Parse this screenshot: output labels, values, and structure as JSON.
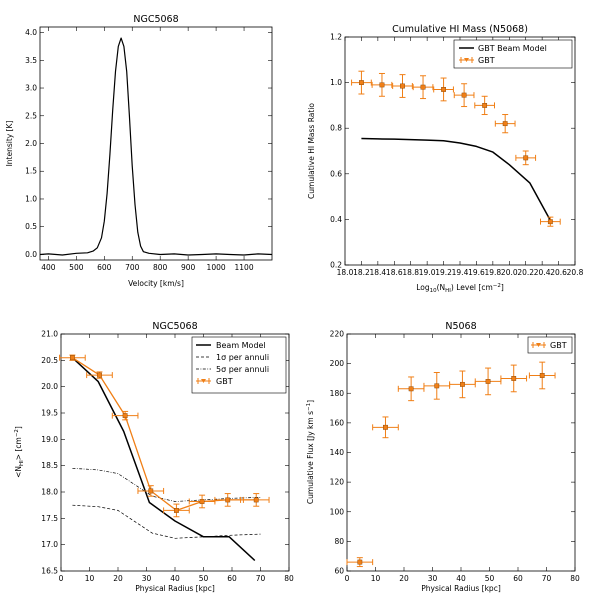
{
  "colors": {
    "gbt": "#f07f16",
    "model": "#000000"
  },
  "chart_data": [
    {
      "type": "line",
      "title": "NGC5068",
      "xlabel": "Velocity [km/s]",
      "ylabel": "Intensity [K]",
      "xlim": [
        370,
        1200
      ],
      "ylim": [
        -0.1,
        4.1
      ],
      "xticks": [
        400,
        500,
        600,
        700,
        800,
        900,
        1000,
        1100
      ],
      "yticks": [
        0.0,
        0.5,
        1.0,
        1.5,
        2.0,
        2.5,
        3.0,
        3.5,
        4.0
      ],
      "xtick_labels": [
        "400",
        "500",
        "600",
        "700",
        "800",
        "900",
        "1000",
        "1100"
      ],
      "ytick_labels": [
        "0.0",
        "0.5",
        "1.0",
        "1.5",
        "2.0",
        "2.5",
        "3.0",
        "3.5",
        "4.0"
      ],
      "series": [
        {
          "x": [
            370,
            400,
            450,
            500,
            540,
            560,
            575,
            590,
            600,
            610,
            620,
            630,
            640,
            650,
            660,
            670,
            680,
            690,
            700,
            710,
            720,
            730,
            740,
            760,
            800,
            850,
            900,
            950,
            1000,
            1050,
            1100,
            1150,
            1200
          ],
          "y": [
            0.0,
            0.01,
            -0.01,
            0.02,
            0.03,
            0.06,
            0.12,
            0.3,
            0.6,
            1.1,
            1.8,
            2.6,
            3.3,
            3.75,
            3.9,
            3.75,
            3.3,
            2.5,
            1.6,
            0.9,
            0.4,
            0.15,
            0.05,
            0.02,
            0.0,
            0.01,
            -0.01,
            0.0,
            0.01,
            0.0,
            -0.01,
            0.01,
            0.0
          ]
        }
      ]
    },
    {
      "type": "line",
      "title": "Cumulative HI Mass (N5068)",
      "xlabel": "Log10(NHI) Level [cm-2]",
      "ylabel": "Cumulative HI Mass Ratio",
      "xlim": [
        18.0,
        20.8
      ],
      "ylim": [
        0.2,
        1.2
      ],
      "xticks": [
        18.0,
        18.2,
        18.4,
        18.6,
        18.8,
        19.0,
        19.2,
        19.4,
        19.6,
        19.8,
        20.0,
        20.2,
        20.4,
        20.6,
        20.8
      ],
      "yticks": [
        0.2,
        0.4,
        0.6,
        0.8,
        1.0,
        1.2
      ],
      "xtick_labels": [
        "18.0",
        "18.2",
        "18.4",
        "18.6",
        "18.8",
        "19.0",
        "19.2",
        "19.4",
        "19.6",
        "19.8",
        "20.0",
        "20.2",
        "20.4",
        "20.6",
        "20.8"
      ],
      "ytick_labels": [
        "0.2",
        "0.4",
        "0.6",
        "0.8",
        "1.0",
        "1.2"
      ],
      "legend_items": [
        "GBT Beam Model",
        "GBT"
      ],
      "legend": "top-right",
      "series": [
        {
          "name": "GBT Beam Model",
          "x": [
            18.2,
            18.4,
            18.6,
            18.8,
            19.0,
            19.2,
            19.4,
            19.6,
            19.8,
            20.0,
            20.25,
            20.5
          ],
          "y": [
            0.755,
            0.753,
            0.752,
            0.75,
            0.748,
            0.745,
            0.735,
            0.72,
            0.695,
            0.64,
            0.56,
            0.395
          ]
        },
        {
          "name": "GBT",
          "x": [
            18.2,
            18.45,
            18.7,
            18.95,
            19.2,
            19.45,
            19.7,
            19.95,
            20.2,
            20.5
          ],
          "y": [
            1.0,
            0.99,
            0.985,
            0.98,
            0.97,
            0.945,
            0.9,
            0.82,
            0.67,
            0.39
          ],
          "xerr": [
            0.12,
            0.12,
            0.12,
            0.12,
            0.12,
            0.12,
            0.12,
            0.12,
            0.12,
            0.12
          ],
          "yerr": [
            0.05,
            0.05,
            0.05,
            0.05,
            0.05,
            0.05,
            0.04,
            0.04,
            0.03,
            0.02
          ]
        }
      ]
    },
    {
      "type": "line",
      "title": "NGC5068",
      "xlabel": "Physical Radius [kpc]",
      "ylabel": "<NHI> [cm-2]",
      "xlim": [
        0,
        80
      ],
      "ylim": [
        16.5,
        21.0
      ],
      "xticks": [
        0,
        10,
        20,
        30,
        40,
        50,
        60,
        70,
        80
      ],
      "yticks": [
        16.5,
        17.0,
        17.5,
        18.0,
        18.5,
        19.0,
        19.5,
        20.0,
        20.5,
        21.0
      ],
      "xtick_labels": [
        "0",
        "10",
        "20",
        "30",
        "40",
        "50",
        "60",
        "70",
        "80"
      ],
      "ytick_labels": [
        "16.5",
        "17.0",
        "17.5",
        "18.0",
        "18.5",
        "19.0",
        "19.5",
        "20.0",
        "20.5",
        "21.0"
      ],
      "legend_items": [
        "Beam Model",
        "1σ per annuli",
        "5σ per annuli",
        "GBT"
      ],
      "legend": "top-right",
      "series": [
        {
          "name": "Beam Model",
          "x": [
            4,
            13,
            22,
            31,
            40,
            50,
            59,
            68
          ],
          "y": [
            20.55,
            20.1,
            19.15,
            17.8,
            17.45,
            17.15,
            17.15,
            16.7
          ]
        },
        {
          "name": "1σ per annuli",
          "x": [
            4,
            13,
            20,
            27,
            32,
            40,
            50,
            60,
            70
          ],
          "y": [
            17.75,
            17.72,
            17.65,
            17.4,
            17.22,
            17.12,
            17.15,
            17.18,
            17.2
          ]
        },
        {
          "name": "5σ per annuli",
          "x": [
            4,
            13,
            20,
            27,
            32,
            40,
            50,
            60,
            70
          ],
          "y": [
            18.45,
            18.42,
            18.35,
            18.1,
            17.92,
            17.82,
            17.85,
            17.88,
            17.9
          ]
        },
        {
          "name": "GBT",
          "x": [
            4,
            13.5,
            22.5,
            31.5,
            40.5,
            49.5,
            58.5,
            68.5
          ],
          "y": [
            20.55,
            20.22,
            19.45,
            18.02,
            17.65,
            17.82,
            17.85,
            17.85
          ],
          "xerr": [
            4.5,
            4.5,
            4.5,
            4.5,
            4.5,
            4.5,
            4.5,
            4.5
          ],
          "yerr": [
            0.05,
            0.06,
            0.08,
            0.1,
            0.12,
            0.12,
            0.12,
            0.12
          ]
        }
      ]
    },
    {
      "type": "scatter",
      "title": "N5068",
      "xlabel": "Physical Radius [kpc]",
      "ylabel": "Cumulative Flux [Jy km s-1]",
      "xlim": [
        0,
        80
      ],
      "ylim": [
        60,
        220
      ],
      "xticks": [
        0,
        10,
        20,
        30,
        40,
        50,
        60,
        70,
        80
      ],
      "yticks": [
        60,
        80,
        100,
        120,
        140,
        160,
        180,
        200,
        220
      ],
      "xtick_labels": [
        "0",
        "10",
        "20",
        "30",
        "40",
        "50",
        "60",
        "70",
        "80"
      ],
      "ytick_labels": [
        "60",
        "80",
        "100",
        "120",
        "140",
        "160",
        "180",
        "200",
        "220"
      ],
      "legend_items": [
        "GBT"
      ],
      "legend": "top-right",
      "series": [
        {
          "name": "GBT",
          "x": [
            4.5,
            13.5,
            22.5,
            31.5,
            40.5,
            49.5,
            58.5,
            68.5
          ],
          "y": [
            66,
            157,
            183,
            185,
            186,
            188,
            190,
            192
          ],
          "xerr": [
            4.5,
            4.5,
            4.5,
            4.5,
            4.5,
            4.5,
            4.5,
            4.5
          ],
          "yerr": [
            3,
            7,
            8,
            9,
            9,
            9,
            9,
            9
          ]
        }
      ]
    }
  ]
}
